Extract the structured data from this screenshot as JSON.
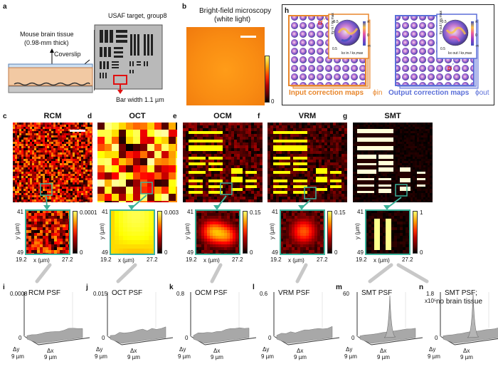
{
  "panels": {
    "a": {
      "letter": "a",
      "tissue_label": "Mouse brain tissue",
      "tissue_thickness": "(0.98-mm thick)",
      "coverslip_label": "Coverslip",
      "target_label": "USAF target, group8",
      "bar_width": "Bar width 1.1 µm"
    },
    "b": {
      "letter": "b",
      "title_line1": "Bright-field microscopy",
      "title_line2": "(white light)",
      "cb_min": "0"
    },
    "h": {
      "letter": "h",
      "input_label": "Input correction maps",
      "input_symbol": "ϕin",
      "output_label": "Output correction maps",
      "output_symbol": "ϕout",
      "inset_ticks_low": "-0.5",
      "inset_ticks_high": "0.5",
      "inset_tick_zero": "0",
      "inset_axis_x_in": "kx in / kx,max",
      "inset_axis_y_in": "ky in / ky,max",
      "inset_axis_x_out": "kx out / kx,max",
      "inset_axis_y_out": "ky out / ky,max",
      "phase_high": "π",
      "phase_low": "-π"
    },
    "methods": [
      {
        "letter": "c",
        "title": "RCM",
        "cbmax": "0.0001",
        "cbmin": "0",
        "y_top": "41",
        "y_bot": "49",
        "x_left": "19.2",
        "x_right": "27.2",
        "ylabel": "y (µm)",
        "xlabel": "x (µm)"
      },
      {
        "letter": "d",
        "title": "OCT",
        "cbmax": "0.003",
        "cbmin": "0",
        "y_top": "41",
        "y_bot": "49",
        "x_left": "19.2",
        "x_right": "27.2",
        "ylabel": "y (µm)",
        "xlabel": "x (µm)"
      },
      {
        "letter": "e",
        "title": "OCM",
        "cbmax": "0.15",
        "cbmin": "0",
        "y_top": "41",
        "y_bot": "49",
        "x_left": "19.2",
        "x_right": "27.2",
        "ylabel": "y (µm)",
        "xlabel": "x (µm)"
      },
      {
        "letter": "f",
        "title": "VRM",
        "cbmax": "0.15",
        "cbmin": "0",
        "y_top": "41",
        "y_bot": "49",
        "x_left": "19.2",
        "x_right": "27.2",
        "ylabel": "y (µm)",
        "xlabel": "x (µm)"
      },
      {
        "letter": "g",
        "title": "SMT",
        "cbmax": "1",
        "cbmin": "0",
        "y_top": "41",
        "y_bot": "49",
        "x_left": "19.2",
        "x_right": "27.2",
        "ylabel": "y (µm)",
        "xlabel": "x (µm)"
      }
    ],
    "psf": [
      {
        "letter": "i",
        "title": "RCM PSF",
        "zmax": "0.0008",
        "zmin": "0",
        "dy": "Δy",
        "dy_val": "9 µm",
        "dx": "Δx",
        "dx_val": "9 µm",
        "peak": 0.08
      },
      {
        "letter": "j",
        "title": "OCT PSF",
        "zmax": "0.015",
        "zmin": "0",
        "dy": "Δy",
        "dy_val": "9 µm",
        "dx": "Δx",
        "dx_val": "9 µm",
        "peak": 0.06
      },
      {
        "letter": "k",
        "title": "OCM PSF",
        "zmax": "0.8",
        "zmin": "0",
        "dy": "Δy",
        "dy_val": "9 µm",
        "dx": "Δx",
        "dx_val": "9 µm",
        "peak": 0.1
      },
      {
        "letter": "l",
        "title": "VRM PSF",
        "zmax": "0.6",
        "zmin": "0",
        "dy": "Δy",
        "dy_val": "9 µm",
        "dx": "Δx",
        "dx_val": "9 µm",
        "peak": 0.15
      },
      {
        "letter": "m",
        "title": "SMT PSF",
        "zmax": "60",
        "zmin": "0",
        "dy": "Δy",
        "dy_val": "9 µm",
        "dx": "Δx",
        "dx_val": "9 µm",
        "peak": 0.95
      },
      {
        "letter": "n",
        "title": "SMT PSF;",
        "title2": "no brain tissue",
        "zmax": "1.8",
        "zmax_exp": "x10⁵",
        "zmin": "0",
        "dy": "Δy",
        "dy_val": "9 µm",
        "dx": "Δx",
        "dx_val": "9 µm",
        "peak": 1.0
      }
    ]
  },
  "colors": {
    "accent_teal": "#3cb39a",
    "input_orange": "#e8862b",
    "output_blue": "#5b6fd8"
  }
}
